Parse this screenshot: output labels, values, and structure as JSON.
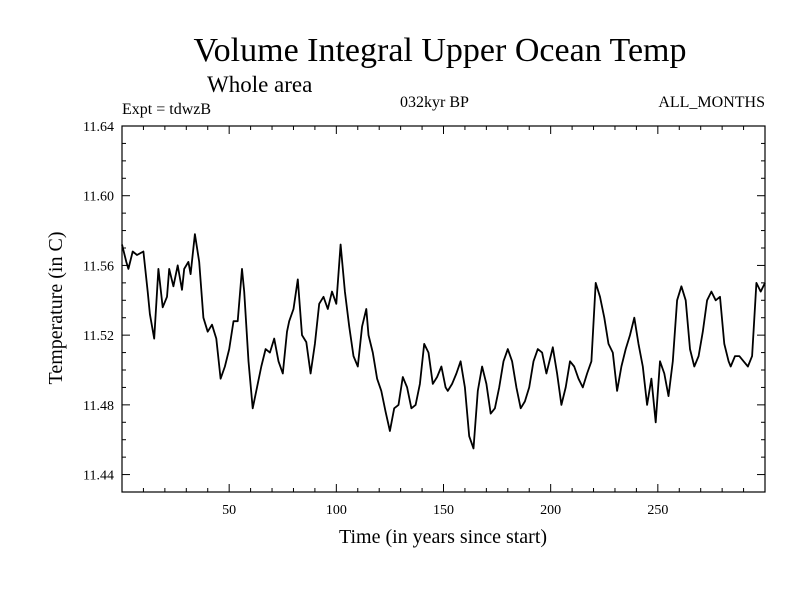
{
  "header": {
    "title": "Volume Integral Upper Ocean Temp",
    "subtitle": "Whole area",
    "expt": "Expt = tdwzB",
    "period": "032kyr BP",
    "months": "ALL_MONTHS"
  },
  "chart_data": {
    "type": "line",
    "title": "Volume Integral Upper Ocean Temp",
    "subtitle": "Whole area",
    "xlabel": "Time (in years since start)",
    "ylabel": "Temperature (in C)",
    "xlim": [
      0,
      300
    ],
    "ylim": [
      11.43,
      11.64
    ],
    "xticks": [
      50,
      100,
      150,
      200,
      250
    ],
    "yticks": [
      11.44,
      11.48,
      11.52,
      11.56,
      11.6,
      11.64
    ],
    "ytick_labels": [
      "11.44",
      "11.48",
      "11.52",
      "11.56",
      "11.60",
      "11.64"
    ],
    "grid": false,
    "series": [
      {
        "color": "#000000",
        "x": [
          0,
          2,
          3,
          5,
          7,
          10,
          12,
          13,
          15,
          17,
          19,
          21,
          22,
          24,
          26,
          28,
          29,
          31,
          32,
          34,
          36,
          38,
          40,
          42,
          44,
          46,
          48,
          50,
          52,
          54,
          56,
          57,
          59,
          61,
          63,
          65,
          67,
          69,
          71,
          73,
          75,
          77,
          78,
          80,
          82,
          84,
          86,
          88,
          90,
          92,
          94,
          96,
          98,
          100,
          102,
          104,
          106,
          108,
          110,
          112,
          114,
          115,
          117,
          119,
          121,
          123,
          125,
          127,
          129,
          131,
          133,
          135,
          137,
          139,
          141,
          143,
          145,
          147,
          149,
          151,
          152,
          154,
          156,
          158,
          160,
          162,
          164,
          166,
          168,
          170,
          172,
          174,
          176,
          178,
          180,
          182,
          184,
          186,
          188,
          190,
          192,
          194,
          196,
          198,
          200,
          201,
          203,
          205,
          207,
          209,
          211,
          213,
          215,
          217,
          219,
          221,
          223,
          225,
          227,
          229,
          231,
          233,
          235,
          237,
          239,
          241,
          243,
          245,
          247,
          249,
          251,
          253,
          255,
          257,
          259,
          261,
          263,
          265,
          267,
          269,
          271,
          273,
          275,
          277,
          279,
          281,
          283,
          284,
          286,
          288,
          290,
          292,
          294,
          296,
          298,
          300
        ],
        "values": [
          11.572,
          11.562,
          11.558,
          11.568,
          11.566,
          11.568,
          11.545,
          11.532,
          11.518,
          11.558,
          11.536,
          11.542,
          11.558,
          11.548,
          11.56,
          11.546,
          11.558,
          11.562,
          11.555,
          11.578,
          11.562,
          11.53,
          11.522,
          11.526,
          11.518,
          11.495,
          11.502,
          11.512,
          11.528,
          11.528,
          11.558,
          11.545,
          11.505,
          11.478,
          11.49,
          11.502,
          11.512,
          11.51,
          11.518,
          11.505,
          11.498,
          11.522,
          11.528,
          11.535,
          11.552,
          11.52,
          11.516,
          11.498,
          11.515,
          11.538,
          11.542,
          11.535,
          11.545,
          11.538,
          11.572,
          11.545,
          11.525,
          11.508,
          11.502,
          11.525,
          11.535,
          11.52,
          11.51,
          11.495,
          11.488,
          11.476,
          11.465,
          11.478,
          11.48,
          11.496,
          11.49,
          11.478,
          11.48,
          11.492,
          11.515,
          11.51,
          11.492,
          11.496,
          11.502,
          11.49,
          11.488,
          11.492,
          11.498,
          11.505,
          11.49,
          11.462,
          11.455,
          11.488,
          11.502,
          11.492,
          11.475,
          11.478,
          11.49,
          11.505,
          11.512,
          11.505,
          11.49,
          11.478,
          11.482,
          11.49,
          11.505,
          11.512,
          11.51,
          11.498,
          11.508,
          11.513,
          11.498,
          11.48,
          11.49,
          11.505,
          11.502,
          11.495,
          11.49,
          11.498,
          11.505,
          11.55,
          11.542,
          11.53,
          11.515,
          11.51,
          11.488,
          11.502,
          11.512,
          11.52,
          11.53,
          11.515,
          11.502,
          11.48,
          11.495,
          11.47,
          11.505,
          11.498,
          11.485,
          11.505,
          11.54,
          11.548,
          11.54,
          11.512,
          11.502,
          11.508,
          11.522,
          11.54,
          11.545,
          11.54,
          11.542,
          11.515,
          11.505,
          11.502,
          11.508,
          11.508,
          11.505,
          11.502,
          11.508,
          11.55,
          11.545,
          11.55
        ]
      }
    ]
  }
}
